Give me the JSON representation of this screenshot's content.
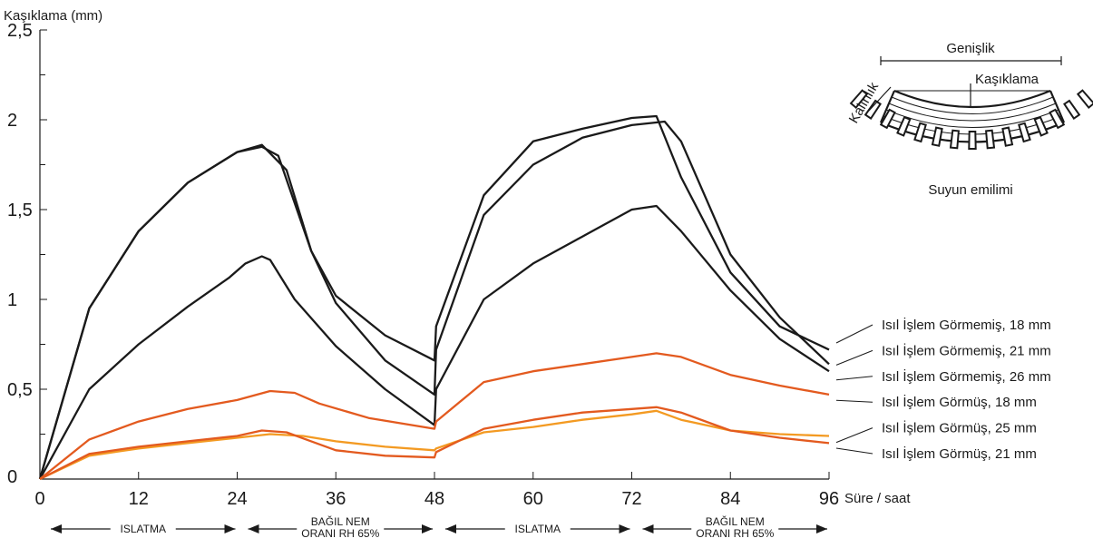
{
  "chart_data": {
    "type": "line",
    "ylabel": "Kaşıklama (mm)",
    "xlabel": "Süre / saat",
    "xlim": [
      0,
      96
    ],
    "ylim": [
      0,
      2.5
    ],
    "x_ticks": [
      0,
      12,
      24,
      36,
      48,
      60,
      72,
      84,
      96
    ],
    "x_tick_labels": [
      "0",
      "12",
      "24",
      "36",
      "48",
      "60",
      "72",
      "84",
      "96"
    ],
    "y_ticks": [
      0,
      0.5,
      1,
      1.5,
      2,
      2.5
    ],
    "y_tick_labels": [
      "0",
      "0,5",
      "1",
      "1,5",
      "2",
      "2,5"
    ],
    "grid": false,
    "series": [
      {
        "name": "Isıl İşlem Görmemiş, 18 mm",
        "color": "#1a1a1a",
        "points": [
          [
            0,
            0
          ],
          [
            6,
            0.95
          ],
          [
            12,
            1.38
          ],
          [
            18,
            1.65
          ],
          [
            24,
            1.82
          ],
          [
            27,
            1.86
          ],
          [
            30,
            1.72
          ],
          [
            33,
            1.27
          ],
          [
            36,
            1.02
          ],
          [
            42,
            0.8
          ],
          [
            48,
            0.66
          ],
          [
            48.2,
            0.85
          ],
          [
            54,
            1.58
          ],
          [
            60,
            1.88
          ],
          [
            66,
            1.95
          ],
          [
            72,
            2.01
          ],
          [
            75,
            2.02
          ],
          [
            78,
            1.68
          ],
          [
            84,
            1.15
          ],
          [
            90,
            0.85
          ],
          [
            96,
            0.72
          ]
        ]
      },
      {
        "name": "Isıl İşlem Görmemiş, 21 mm",
        "color": "#1a1a1a",
        "points": [
          [
            0,
            0
          ],
          [
            6,
            0.95
          ],
          [
            12,
            1.38
          ],
          [
            18,
            1.65
          ],
          [
            24,
            1.82
          ],
          [
            27,
            1.85
          ],
          [
            29,
            1.8
          ],
          [
            33,
            1.27
          ],
          [
            36,
            0.98
          ],
          [
            42,
            0.66
          ],
          [
            48,
            0.47
          ],
          [
            48.2,
            0.72
          ],
          [
            54,
            1.47
          ],
          [
            60,
            1.75
          ],
          [
            66,
            1.9
          ],
          [
            72,
            1.97
          ],
          [
            76,
            1.99
          ],
          [
            78,
            1.88
          ],
          [
            84,
            1.25
          ],
          [
            90,
            0.9
          ],
          [
            96,
            0.64
          ]
        ]
      },
      {
        "name": "Isıl İşlem Görmemiş, 26 mm",
        "color": "#1a1a1a",
        "points": [
          [
            0,
            0
          ],
          [
            6,
            0.5
          ],
          [
            12,
            0.75
          ],
          [
            18,
            0.96
          ],
          [
            23,
            1.12
          ],
          [
            25,
            1.2
          ],
          [
            27,
            1.24
          ],
          [
            28,
            1.22
          ],
          [
            31,
            1.0
          ],
          [
            36,
            0.74
          ],
          [
            42,
            0.5
          ],
          [
            48,
            0.3
          ],
          [
            48.2,
            0.5
          ],
          [
            54,
            1.0
          ],
          [
            60,
            1.2
          ],
          [
            66,
            1.35
          ],
          [
            72,
            1.5
          ],
          [
            75,
            1.52
          ],
          [
            78,
            1.38
          ],
          [
            84,
            1.05
          ],
          [
            90,
            0.78
          ],
          [
            96,
            0.6
          ]
        ]
      },
      {
        "name": "Isıl İşlem Görmüş, 18 mm",
        "color": "#e35a1f",
        "points": [
          [
            0,
            0
          ],
          [
            6,
            0.22
          ],
          [
            12,
            0.32
          ],
          [
            18,
            0.39
          ],
          [
            24,
            0.44
          ],
          [
            28,
            0.49
          ],
          [
            31,
            0.48
          ],
          [
            34,
            0.42
          ],
          [
            40,
            0.34
          ],
          [
            48,
            0.28
          ],
          [
            48.2,
            0.32
          ],
          [
            54,
            0.54
          ],
          [
            60,
            0.6
          ],
          [
            66,
            0.64
          ],
          [
            72,
            0.68
          ],
          [
            75,
            0.7
          ],
          [
            78,
            0.68
          ],
          [
            84,
            0.58
          ],
          [
            90,
            0.52
          ],
          [
            96,
            0.47
          ]
        ]
      },
      {
        "name": "Isıl İşlem Görmüş, 25 mm",
        "color": "#f39a22",
        "points": [
          [
            0,
            0
          ],
          [
            6,
            0.13
          ],
          [
            12,
            0.17
          ],
          [
            18,
            0.2
          ],
          [
            24,
            0.23
          ],
          [
            28,
            0.25
          ],
          [
            32,
            0.24
          ],
          [
            36,
            0.21
          ],
          [
            42,
            0.18
          ],
          [
            48,
            0.16
          ],
          [
            48.2,
            0.17
          ],
          [
            54,
            0.26
          ],
          [
            60,
            0.29
          ],
          [
            66,
            0.33
          ],
          [
            72,
            0.36
          ],
          [
            75,
            0.38
          ],
          [
            78,
            0.33
          ],
          [
            84,
            0.27
          ],
          [
            90,
            0.25
          ],
          [
            96,
            0.24
          ]
        ]
      },
      {
        "name": "Isıl İşlem Görmüş, 21 mm",
        "color": "#e35a1f",
        "points": [
          [
            0,
            0
          ],
          [
            6,
            0.14
          ],
          [
            12,
            0.18
          ],
          [
            18,
            0.21
          ],
          [
            24,
            0.24
          ],
          [
            27,
            0.27
          ],
          [
            30,
            0.26
          ],
          [
            33,
            0.21
          ],
          [
            36,
            0.16
          ],
          [
            42,
            0.13
          ],
          [
            48,
            0.12
          ],
          [
            48.2,
            0.15
          ],
          [
            54,
            0.28
          ],
          [
            60,
            0.33
          ],
          [
            66,
            0.37
          ],
          [
            72,
            0.39
          ],
          [
            75,
            0.4
          ],
          [
            78,
            0.37
          ],
          [
            84,
            0.27
          ],
          [
            90,
            0.23
          ],
          [
            96,
            0.2
          ]
        ]
      }
    ],
    "phases": [
      {
        "label": "ISLATMA",
        "from": 0,
        "to": 24
      },
      {
        "label": "BAĞIL NEM ORANI RH 65%",
        "from": 24,
        "to": 48
      },
      {
        "label": "ISLATMA",
        "from": 48,
        "to": 72
      },
      {
        "label": "BAĞIL NEM ORANI RH 65%",
        "from": 72,
        "to": 96
      }
    ],
    "phase_label_lines": [
      [
        "ISLATMA"
      ],
      [
        "BAĞIL NEM",
        "ORANI RH 65%"
      ],
      [
        "ISLATMA"
      ],
      [
        "BAĞIL NEM",
        "ORANI RH 65%"
      ]
    ],
    "legend_placement": "right",
    "inset_diagram": {
      "width_label": "Genişlik",
      "cupping_label": "Kaşıklama",
      "thickness_label": "Kalınlık",
      "absorption_label": "Suyun emilimi"
    }
  }
}
